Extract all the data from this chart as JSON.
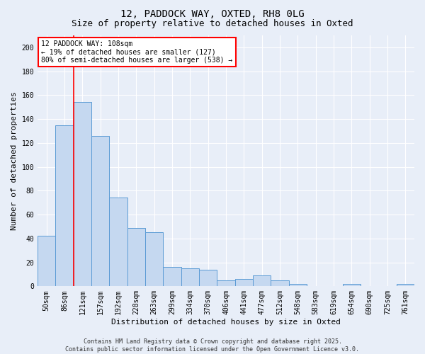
{
  "title1": "12, PADDOCK WAY, OXTED, RH8 0LG",
  "title2": "Size of property relative to detached houses in Oxted",
  "xlabel": "Distribution of detached houses by size in Oxted",
  "ylabel": "Number of detached properties",
  "bar_labels": [
    "50sqm",
    "86sqm",
    "121sqm",
    "157sqm",
    "192sqm",
    "228sqm",
    "263sqm",
    "299sqm",
    "334sqm",
    "370sqm",
    "406sqm",
    "441sqm",
    "477sqm",
    "512sqm",
    "548sqm",
    "583sqm",
    "619sqm",
    "654sqm",
    "690sqm",
    "725sqm",
    "761sqm"
  ],
  "bar_values": [
    42,
    135,
    154,
    126,
    74,
    49,
    45,
    16,
    15,
    14,
    5,
    6,
    9,
    5,
    2,
    0,
    0,
    2,
    0,
    0,
    2
  ],
  "bar_color": "#c5d8f0",
  "bar_edge_color": "#5b9bd5",
  "redline_x": 1.5,
  "annotation_title": "12 PADDOCK WAY: 108sqm",
  "annotation_line1": "← 19% of detached houses are smaller (127)",
  "annotation_line2": "80% of semi-detached houses are larger (538) →",
  "copyright": "Contains HM Land Registry data © Crown copyright and database right 2025.\nContains public sector information licensed under the Open Government Licence v3.0.",
  "ylim": [
    0,
    210
  ],
  "yticks": [
    0,
    20,
    40,
    60,
    80,
    100,
    120,
    140,
    160,
    180,
    200
  ],
  "bg_color": "#e8eef8",
  "plot_bg": "#e8eef8",
  "grid_color": "#ffffff",
  "title1_fontsize": 10,
  "title2_fontsize": 9,
  "tick_fontsize": 7,
  "ylabel_fontsize": 8,
  "xlabel_fontsize": 8,
  "ann_fontsize": 7
}
